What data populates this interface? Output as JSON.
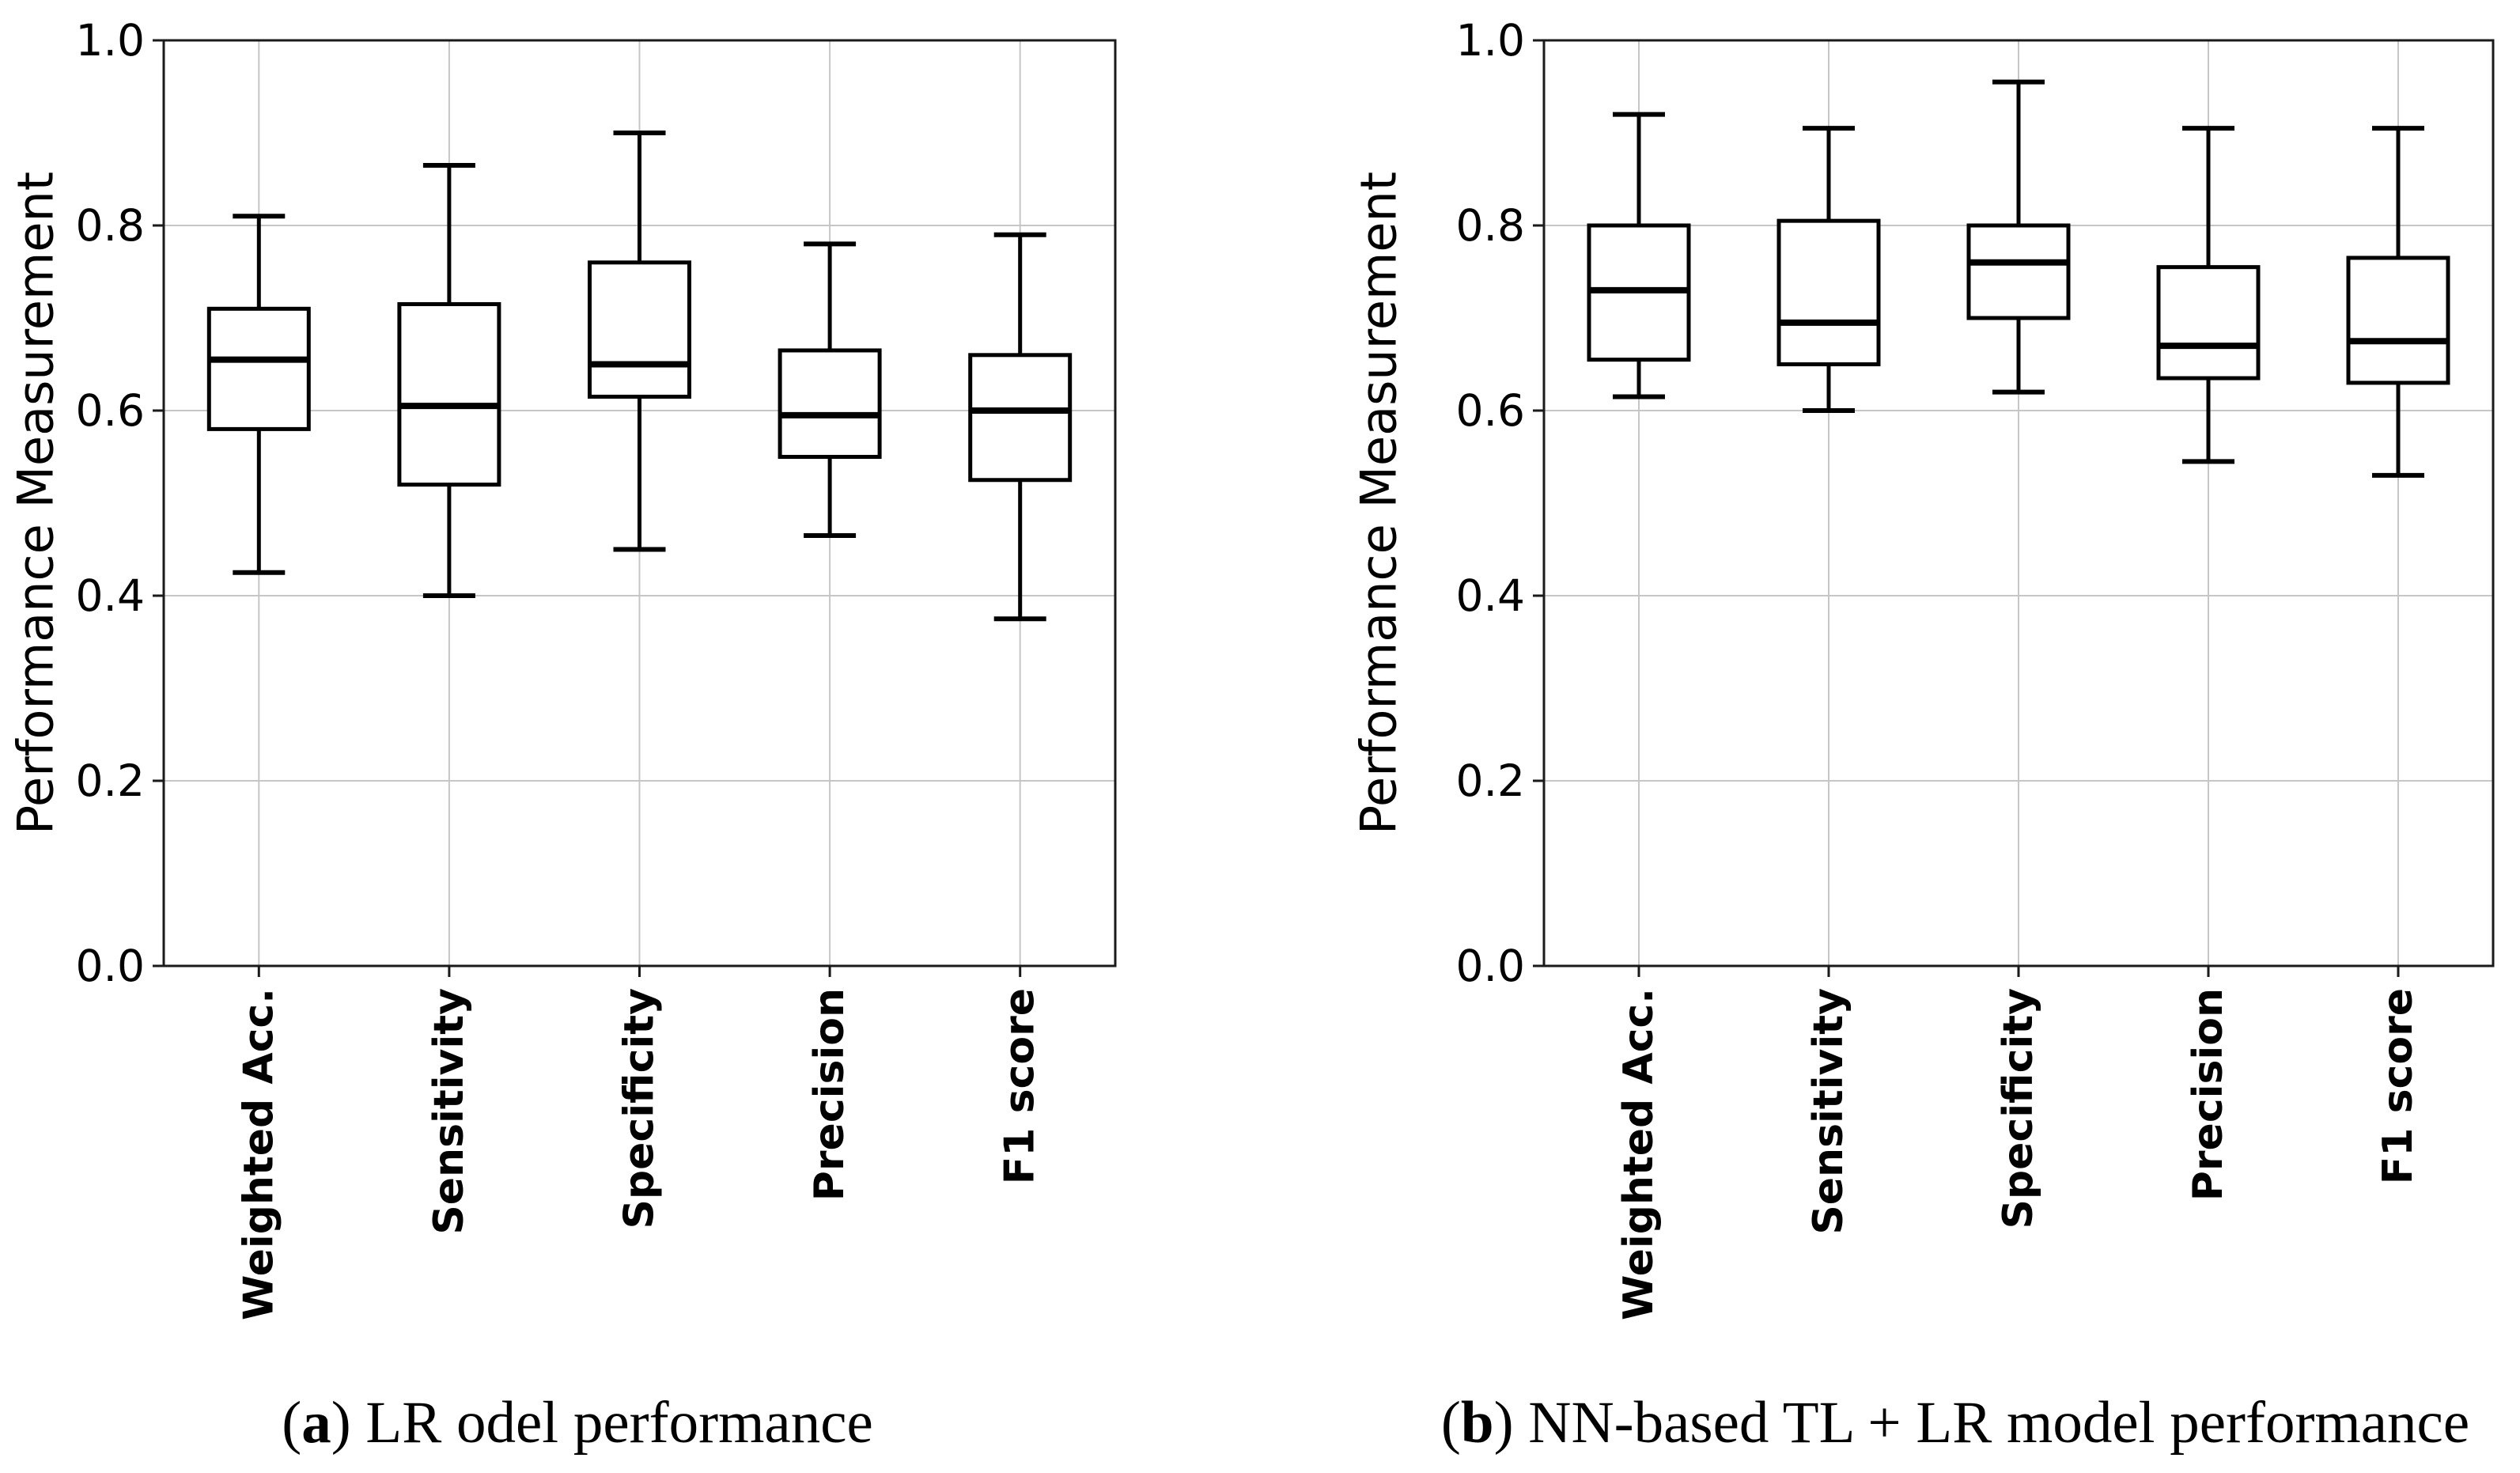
{
  "figure": {
    "background": "#ffffff",
    "line_color": "#000000",
    "grid_color": "#c6c6c6",
    "spine_color": "#1a1a1a"
  },
  "captions": {
    "a": {
      "open": "(",
      "bold": "a",
      "rest": ") LR odel performance"
    },
    "b": {
      "open": "(",
      "bold": "b",
      "rest": ") NN-based TL + LR model performance"
    }
  },
  "chart_data": [
    {
      "type": "boxplot",
      "panel": "a",
      "caption": "(a) LR odel performance",
      "ylabel": "Performance Measurement",
      "ylim": [
        0.0,
        1.0
      ],
      "yticks": [
        0.0,
        0.2,
        0.4,
        0.6,
        0.8,
        1.0
      ],
      "ytick_labels": [
        "0.0",
        "0.2",
        "0.4",
        "0.6",
        "0.8",
        "1.0"
      ],
      "grid": true,
      "categories": [
        "Weighted Acc.",
        "Sensitivity",
        "Specificity",
        "Precision",
        "F1 score"
      ],
      "boxes": [
        {
          "category": "Weighted Acc.",
          "whisker_low": 0.425,
          "q1": 0.58,
          "median": 0.655,
          "q3": 0.71,
          "whisker_high": 0.81
        },
        {
          "category": "Sensitivity",
          "whisker_low": 0.4,
          "q1": 0.52,
          "median": 0.605,
          "q3": 0.715,
          "whisker_high": 0.865
        },
        {
          "category": "Specificity",
          "whisker_low": 0.45,
          "q1": 0.615,
          "median": 0.65,
          "q3": 0.76,
          "whisker_high": 0.9
        },
        {
          "category": "Precision",
          "whisker_low": 0.465,
          "q1": 0.55,
          "median": 0.595,
          "q3": 0.665,
          "whisker_high": 0.78
        },
        {
          "category": "F1 score",
          "whisker_low": 0.375,
          "q1": 0.525,
          "median": 0.6,
          "q3": 0.66,
          "whisker_high": 0.79
        }
      ]
    },
    {
      "type": "boxplot",
      "panel": "b",
      "caption": "(b) NN-based TL + LR model performance",
      "ylabel": "Performance Measurement",
      "ylim": [
        0.0,
        1.0
      ],
      "yticks": [
        0.0,
        0.2,
        0.4,
        0.6,
        0.8,
        1.0
      ],
      "ytick_labels": [
        "0.0",
        "0.2",
        "0.4",
        "0.6",
        "0.8",
        "1.0"
      ],
      "grid": true,
      "categories": [
        "Weighted Acc.",
        "Sensitivity",
        "Specificity",
        "Precision",
        "F1 score"
      ],
      "boxes": [
        {
          "category": "Weighted Acc.",
          "whisker_low": 0.615,
          "q1": 0.655,
          "median": 0.73,
          "q3": 0.8,
          "whisker_high": 0.92
        },
        {
          "category": "Sensitivity",
          "whisker_low": 0.6,
          "q1": 0.65,
          "median": 0.695,
          "q3": 0.805,
          "whisker_high": 0.905
        },
        {
          "category": "Specificity",
          "whisker_low": 0.62,
          "q1": 0.7,
          "median": 0.76,
          "q3": 0.8,
          "whisker_high": 0.955
        },
        {
          "category": "Precision",
          "whisker_low": 0.545,
          "q1": 0.635,
          "median": 0.67,
          "q3": 0.755,
          "whisker_high": 0.905
        },
        {
          "category": "F1 score",
          "whisker_low": 0.53,
          "q1": 0.63,
          "median": 0.675,
          "q3": 0.765,
          "whisker_high": 0.905
        }
      ]
    }
  ]
}
